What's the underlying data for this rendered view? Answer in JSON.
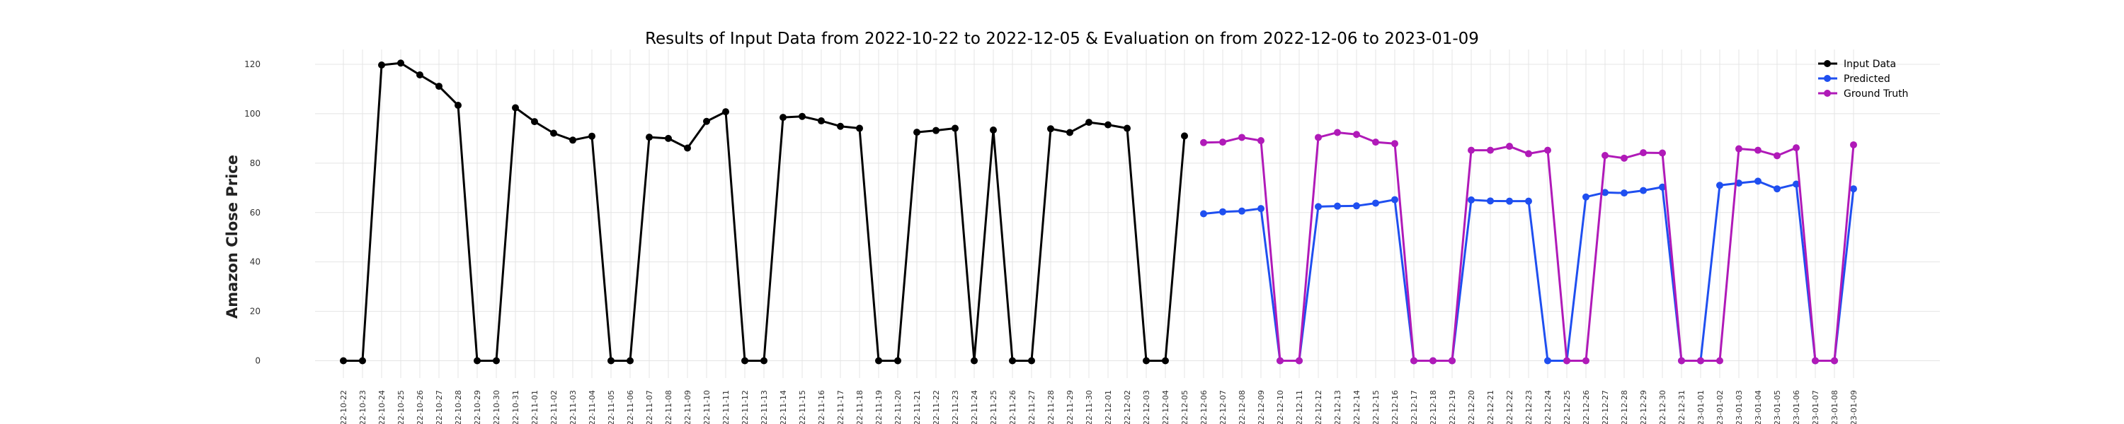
{
  "chart_data": {
    "type": "line",
    "title": "Results of Input Data from 2022-10-22 to 2022-12-05 & Evaluation on from 2022-12-06 to 2023-01-09",
    "xlabel": "",
    "ylabel": "Amazon Close Price",
    "ylim": [
      -7,
      126
    ],
    "yticks": [
      0,
      20,
      40,
      60,
      80,
      100,
      120
    ],
    "grid": true,
    "legend_position": "top-right",
    "x": [
      "2022-10-22",
      "2022-10-23",
      "2022-10-24",
      "2022-10-25",
      "2022-10-26",
      "2022-10-27",
      "2022-10-28",
      "2022-10-29",
      "2022-10-30",
      "2022-10-31",
      "2022-11-01",
      "2022-11-02",
      "2022-11-03",
      "2022-11-04",
      "2022-11-05",
      "2022-11-06",
      "2022-11-07",
      "2022-11-08",
      "2022-11-09",
      "2022-11-10",
      "2022-11-11",
      "2022-11-12",
      "2022-11-13",
      "2022-11-14",
      "2022-11-15",
      "2022-11-16",
      "2022-11-17",
      "2022-11-18",
      "2022-11-19",
      "2022-11-20",
      "2022-11-21",
      "2022-11-22",
      "2022-11-23",
      "2022-11-24",
      "2022-11-25",
      "2022-11-26",
      "2022-11-27",
      "2022-11-28",
      "2022-11-29",
      "2022-11-30",
      "2022-12-01",
      "2022-12-02",
      "2022-12-03",
      "2022-12-04",
      "2022-12-05",
      "2022-12-06",
      "2022-12-07",
      "2022-12-08",
      "2022-12-09",
      "2022-12-10",
      "2022-12-11",
      "2022-12-12",
      "2022-12-13",
      "2022-12-14",
      "2022-12-15",
      "2022-12-16",
      "2022-12-17",
      "2022-12-18",
      "2022-12-19",
      "2022-12-20",
      "2022-12-21",
      "2022-12-22",
      "2022-12-23",
      "2022-12-24",
      "2022-12-25",
      "2022-12-26",
      "2022-12-27",
      "2022-12-28",
      "2022-12-29",
      "2022-12-30",
      "2022-12-31",
      "2023-01-01",
      "2023-01-02",
      "2023-01-03",
      "2023-01-04",
      "2023-01-05",
      "2023-01-06",
      "2023-01-07",
      "2023-01-08",
      "2023-01-09"
    ],
    "x_tick_labels": [
      "'22-10-22",
      "'22-10-23",
      "'22-10-24",
      "'22-10-25",
      "'22-10-26",
      "'22-10-27",
      "'22-10-28",
      "'22-10-29",
      "'22-10-30",
      "'22-10-31",
      "'22-11-01",
      "'22-11-02",
      "'22-11-03",
      "'22-11-04",
      "'22-11-05",
      "'22-11-06",
      "'22-11-07",
      "'22-11-08",
      "'22-11-09",
      "'22-11-10",
      "'22-11-11",
      "'22-11-12",
      "'22-11-13",
      "'22-11-14",
      "'22-11-15",
      "'22-11-16",
      "'22-11-17",
      "'22-11-18",
      "'22-11-19",
      "'22-11-20",
      "'22-11-21",
      "'22-11-22",
      "'22-11-23",
      "'22-11-24",
      "'22-11-25",
      "'22-11-26",
      "'22-11-27",
      "'22-11-28",
      "'22-11-29",
      "'22-11-30",
      "'22-12-01",
      "'22-12-02",
      "'22-12-03",
      "'22-12-04",
      "'22-12-05",
      "'22-12-06",
      "'22-12-07",
      "'22-12-08",
      "'22-12-09",
      "'22-12-10",
      "'22-12-11",
      "'22-12-12",
      "'22-12-13",
      "'22-12-14",
      "'22-12-15",
      "'22-12-16",
      "'22-12-17",
      "'22-12-18",
      "'22-12-19",
      "'22-12-20",
      "'22-12-21",
      "'22-12-22",
      "'22-12-23",
      "'22-12-24",
      "'22-12-25",
      "'22-12-26",
      "'22-12-27",
      "'22-12-28",
      "'22-12-29",
      "'22-12-30",
      "'22-12-31",
      "'23-01-01",
      "'23-01-02",
      "'23-01-03",
      "'23-01-04",
      "'23-01-05",
      "'23-01-06",
      "'23-01-07",
      "'23-01-08",
      "'23-01-09"
    ],
    "series": [
      {
        "name": "Input Data",
        "color": "#000000",
        "x": [
          "2022-10-22",
          "2022-10-23",
          "2022-10-24",
          "2022-10-25",
          "2022-10-26",
          "2022-10-27",
          "2022-10-28",
          "2022-10-29",
          "2022-10-30",
          "2022-10-31",
          "2022-11-01",
          "2022-11-02",
          "2022-11-03",
          "2022-11-04",
          "2022-11-05",
          "2022-11-06",
          "2022-11-07",
          "2022-11-08",
          "2022-11-09",
          "2022-11-10",
          "2022-11-11",
          "2022-11-12",
          "2022-11-13",
          "2022-11-14",
          "2022-11-15",
          "2022-11-16",
          "2022-11-17",
          "2022-11-18",
          "2022-11-19",
          "2022-11-20",
          "2022-11-21",
          "2022-11-22",
          "2022-11-23",
          "2022-11-24",
          "2022-11-25",
          "2022-11-26",
          "2022-11-27",
          "2022-11-28",
          "2022-11-29",
          "2022-11-30",
          "2022-12-01",
          "2022-12-02",
          "2022-12-03",
          "2022-12-04",
          "2022-12-05"
        ],
        "values": [
          0,
          0,
          119.7,
          120.5,
          115.7,
          111.1,
          103.4,
          0,
          0,
          102.4,
          96.8,
          92.1,
          89.3,
          90.9,
          0,
          0,
          90.5,
          90.0,
          86.1,
          96.9,
          100.8,
          0,
          0,
          98.5,
          98.9,
          97.1,
          94.9,
          94.1,
          0,
          0,
          92.5,
          93.2,
          94.1,
          0,
          93.4,
          0,
          0,
          93.9,
          92.4,
          96.5,
          95.5,
          94.1,
          0,
          0,
          91.0
        ]
      },
      {
        "name": "Predicted",
        "color": "#1f4ff0",
        "x": [
          "2022-12-06",
          "2022-12-07",
          "2022-12-08",
          "2022-12-09",
          "2022-12-10",
          "2022-12-11",
          "2022-12-12",
          "2022-12-13",
          "2022-12-14",
          "2022-12-15",
          "2022-12-16",
          "2022-12-17",
          "2022-12-18",
          "2022-12-19",
          "2022-12-20",
          "2022-12-21",
          "2022-12-22",
          "2022-12-23",
          "2022-12-24",
          "2022-12-25",
          "2022-12-26",
          "2022-12-27",
          "2022-12-28",
          "2022-12-29",
          "2022-12-30",
          "2022-12-31",
          "2023-01-01",
          "2023-01-02",
          "2023-01-03",
          "2023-01-04",
          "2023-01-05",
          "2023-01-06",
          "2023-01-07",
          "2023-01-08",
          "2023-01-09"
        ],
        "values": [
          59.5,
          60.3,
          60.6,
          61.6,
          0,
          0,
          62.4,
          62.6,
          62.7,
          63.8,
          65.2,
          0,
          0,
          0,
          65.1,
          64.7,
          64.6,
          64.6,
          0,
          0,
          66.3,
          68.1,
          67.9,
          68.9,
          70.3,
          0,
          0,
          71.0,
          71.9,
          72.7,
          69.6,
          71.5,
          0,
          0,
          69.6
        ]
      },
      {
        "name": "Ground Truth",
        "color": "#b01ab8",
        "x": [
          "2022-12-06",
          "2022-12-07",
          "2022-12-08",
          "2022-12-09",
          "2022-12-10",
          "2022-12-11",
          "2022-12-12",
          "2022-12-13",
          "2022-12-14",
          "2022-12-15",
          "2022-12-16",
          "2022-12-17",
          "2022-12-18",
          "2022-12-19",
          "2022-12-20",
          "2022-12-21",
          "2022-12-22",
          "2022-12-23",
          "2022-12-24",
          "2022-12-25",
          "2022-12-26",
          "2022-12-27",
          "2022-12-28",
          "2022-12-29",
          "2022-12-30",
          "2022-12-31",
          "2023-01-01",
          "2023-01-02",
          "2023-01-03",
          "2023-01-04",
          "2023-01-05",
          "2023-01-06",
          "2023-01-07",
          "2023-01-08",
          "2023-01-09"
        ],
        "values": [
          88.3,
          88.5,
          90.4,
          89.1,
          0,
          0,
          90.4,
          92.4,
          91.6,
          88.5,
          87.9,
          0,
          0,
          0,
          85.2,
          85.2,
          86.8,
          83.8,
          85.2,
          0,
          0,
          83.1,
          82.0,
          84.2,
          84.1,
          0,
          0,
          0,
          85.8,
          85.2,
          83.0,
          86.2,
          0,
          0,
          87.4
        ]
      }
    ]
  }
}
